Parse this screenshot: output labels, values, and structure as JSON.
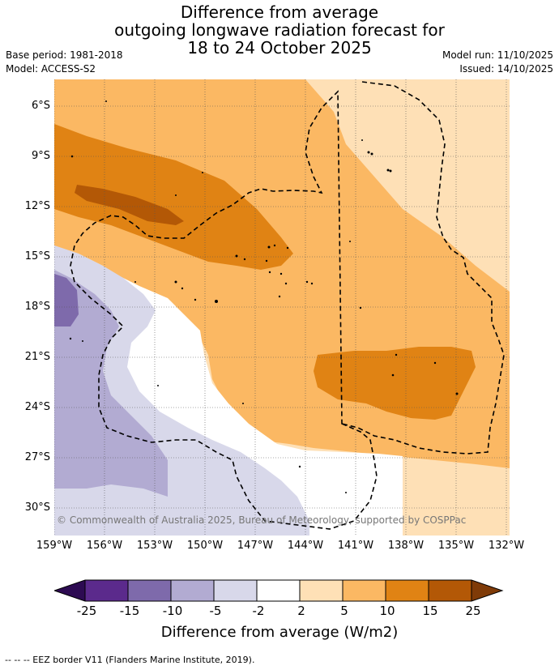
{
  "title": {
    "line1": "Difference from average",
    "line2": "outgoing longwave radiation forecast for",
    "line3": "18 to 24 October 2025"
  },
  "meta": {
    "base_period": "Base period: 1981-2018",
    "model": "Model: ACCESS-S2",
    "model_run": "Model run: 11/10/2025",
    "issued": "Issued: 14/10/2025"
  },
  "map": {
    "copyright": "© Commonwealth of Australia 2025, Bureau of Meteorology, supported by COSPPac",
    "lat_labels": [
      "6°S",
      "9°S",
      "12°S",
      "15°S",
      "18°S",
      "21°S",
      "24°S",
      "27°S",
      "30°S"
    ],
    "lon_labels": [
      "159°W",
      "156°W",
      "153°W",
      "150°W",
      "147°W",
      "144°W",
      "141°W",
      "138°W",
      "135°W",
      "132°W"
    ]
  },
  "colorbar": {
    "labels": [
      "-25",
      "-15",
      "-10",
      "-5",
      "-2",
      "2",
      "5",
      "10",
      "15",
      "25"
    ],
    "colors": [
      "#2d0b52",
      "#5b2a8c",
      "#7e6aab",
      "#b2abd2",
      "#d8d8ea",
      "#ffffff",
      "#fee0b6",
      "#fbb863",
      "#e08314",
      "#b35806",
      "#7f3b08"
    ],
    "title": "Difference from average (W/m2)"
  },
  "footer": {
    "eez_legend": "--  --  -- EEZ border V11 (Flanders Marine Institute, 2019)."
  }
}
